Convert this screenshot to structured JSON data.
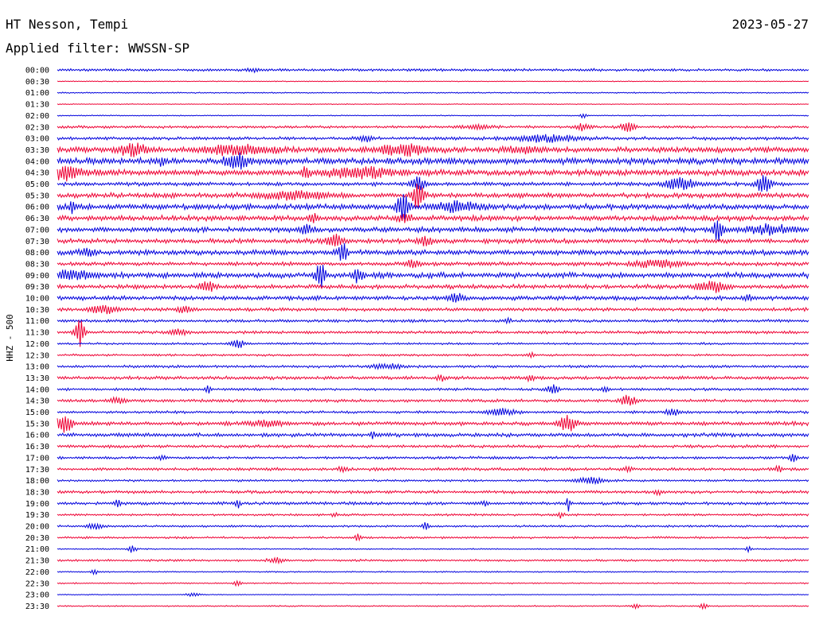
{
  "header": {
    "station": "HT Nesson, Tempi",
    "date": "2023-05-27",
    "filter": "Applied filter: WWSSN-SP"
  },
  "chart_data": {
    "type": "line",
    "title": "HT Nesson, Tempi",
    "subtitle": "Applied filter: WWSSN-SP",
    "ylabel": "HHZ - 500",
    "xlabel": "",
    "grid": false,
    "colors": {
      "blue": "#0000dd",
      "red": "#ee0033"
    },
    "color_cycle": [
      "blue",
      "red"
    ],
    "trace_noise": [
      1.2,
      0.4,
      0.6,
      0.4,
      0.5,
      1.2,
      1.5,
      2.6,
      3.0,
      2.8,
      1.8,
      2.4,
      2.6,
      2.6,
      2.4,
      2.2,
      2.4,
      1.8,
      2.6,
      2.0,
      2.0,
      1.6,
      1.4,
      1.4,
      1.0,
      1.0,
      1.2,
      1.6,
      1.2,
      1.4,
      1.2,
      1.8,
      1.8,
      1.4,
      1.2,
      1.4,
      1.0,
      1.4,
      1.4,
      1.0,
      1.0,
      1.0,
      0.6,
      1.0,
      0.6,
      0.6,
      0.4,
      0.6
    ],
    "series": [
      {
        "label": "00:00",
        "events": [
          {
            "t": 0.26,
            "a": 2,
            "w": 0.01
          }
        ]
      },
      {
        "label": "00:30",
        "events": []
      },
      {
        "label": "01:00",
        "events": []
      },
      {
        "label": "01:30",
        "events": []
      },
      {
        "label": "02:00",
        "events": [
          {
            "t": 0.7,
            "a": 3,
            "w": 0.004
          }
        ]
      },
      {
        "label": "02:30",
        "events": [
          {
            "t": 0.56,
            "a": 2,
            "w": 0.02
          },
          {
            "t": 0.7,
            "a": 4,
            "w": 0.01
          },
          {
            "t": 0.76,
            "a": 5,
            "w": 0.01
          }
        ]
      },
      {
        "label": "03:00",
        "events": [
          {
            "t": 0.41,
            "a": 3,
            "w": 0.01
          },
          {
            "t": 0.65,
            "a": 4,
            "w": 0.04
          }
        ]
      },
      {
        "label": "03:30",
        "events": [
          {
            "t": 0.1,
            "a": 6,
            "w": 0.02
          },
          {
            "t": 0.24,
            "a": 6,
            "w": 0.04
          },
          {
            "t": 0.46,
            "a": 6,
            "w": 0.03
          },
          {
            "t": 0.62,
            "a": 3,
            "w": 0.03
          }
        ]
      },
      {
        "label": "04:00",
        "events": [
          {
            "t": 0.14,
            "a": 5,
            "w": 0.004
          },
          {
            "t": 0.24,
            "a": 10,
            "w": 0.015
          },
          {
            "t": 0.78,
            "a": 3,
            "w": 0.005
          }
        ]
      },
      {
        "label": "04:30",
        "events": [
          {
            "t": 0.01,
            "a": 8,
            "w": 0.02
          },
          {
            "t": 0.33,
            "a": 9,
            "w": 0.005
          },
          {
            "t": 0.4,
            "a": 6,
            "w": 0.04
          }
        ]
      },
      {
        "label": "05:00",
        "events": [
          {
            "t": 0.48,
            "a": 8,
            "w": 0.01
          },
          {
            "t": 0.83,
            "a": 7,
            "w": 0.02
          },
          {
            "t": 0.94,
            "a": 12,
            "w": 0.01
          }
        ]
      },
      {
        "label": "05:30",
        "events": [
          {
            "t": 0.48,
            "a": 18,
            "w": 0.008
          },
          {
            "t": 0.31,
            "a": 4,
            "w": 0.05
          }
        ]
      },
      {
        "label": "06:00",
        "events": [
          {
            "t": 0.02,
            "a": 8,
            "w": 0.004
          },
          {
            "t": 0.46,
            "a": 16,
            "w": 0.008
          },
          {
            "t": 0.53,
            "a": 5,
            "w": 0.03
          }
        ]
      },
      {
        "label": "06:30",
        "events": [
          {
            "t": 0.34,
            "a": 7,
            "w": 0.005
          },
          {
            "t": 0.46,
            "a": 5,
            "w": 0.01
          }
        ]
      },
      {
        "label": "07:00",
        "events": [
          {
            "t": 0.33,
            "a": 5,
            "w": 0.01
          },
          {
            "t": 0.88,
            "a": 13,
            "w": 0.006
          },
          {
            "t": 0.95,
            "a": 5,
            "w": 0.03
          }
        ]
      },
      {
        "label": "07:30",
        "events": [
          {
            "t": 0.37,
            "a": 8,
            "w": 0.01
          },
          {
            "t": 0.49,
            "a": 5,
            "w": 0.01
          }
        ]
      },
      {
        "label": "08:00",
        "events": [
          {
            "t": 0.38,
            "a": 12,
            "w": 0.006
          },
          {
            "t": 0.04,
            "a": 4,
            "w": 0.01
          }
        ]
      },
      {
        "label": "08:30",
        "events": [
          {
            "t": 0.47,
            "a": 4,
            "w": 0.01
          },
          {
            "t": 0.8,
            "a": 4,
            "w": 0.03
          }
        ]
      },
      {
        "label": "09:00",
        "events": [
          {
            "t": 0.35,
            "a": 18,
            "w": 0.006
          },
          {
            "t": 0.4,
            "a": 9,
            "w": 0.006
          },
          {
            "t": 0.02,
            "a": 5,
            "w": 0.03
          }
        ]
      },
      {
        "label": "09:30",
        "events": [
          {
            "t": 0.2,
            "a": 9,
            "w": 0.008
          },
          {
            "t": 0.87,
            "a": 6,
            "w": 0.02
          }
        ]
      },
      {
        "label": "10:00",
        "events": [
          {
            "t": 0.53,
            "a": 6,
            "w": 0.01
          },
          {
            "t": 0.92,
            "a": 4,
            "w": 0.005
          }
        ]
      },
      {
        "label": "10:30",
        "events": [
          {
            "t": 0.06,
            "a": 5,
            "w": 0.02
          },
          {
            "t": 0.17,
            "a": 4,
            "w": 0.01
          }
        ]
      },
      {
        "label": "11:00",
        "events": [
          {
            "t": 0.6,
            "a": 4,
            "w": 0.004
          }
        ]
      },
      {
        "label": "11:30",
        "events": [
          {
            "t": 0.03,
            "a": 18,
            "w": 0.006
          },
          {
            "t": 0.16,
            "a": 5,
            "w": 0.01
          }
        ]
      },
      {
        "label": "12:00",
        "events": [
          {
            "t": 0.24,
            "a": 5,
            "w": 0.01
          }
        ]
      },
      {
        "label": "12:30",
        "events": [
          {
            "t": 0.63,
            "a": 3,
            "w": 0.005
          }
        ]
      },
      {
        "label": "13:00",
        "events": [
          {
            "t": 0.44,
            "a": 3,
            "w": 0.02
          }
        ]
      },
      {
        "label": "13:30",
        "events": [
          {
            "t": 0.51,
            "a": 4,
            "w": 0.005
          },
          {
            "t": 0.63,
            "a": 4,
            "w": 0.005
          }
        ]
      },
      {
        "label": "14:00",
        "events": [
          {
            "t": 0.2,
            "a": 5,
            "w": 0.004
          },
          {
            "t": 0.66,
            "a": 6,
            "w": 0.008
          },
          {
            "t": 0.73,
            "a": 4,
            "w": 0.005
          }
        ]
      },
      {
        "label": "14:30",
        "events": [
          {
            "t": 0.76,
            "a": 7,
            "w": 0.01
          },
          {
            "t": 0.08,
            "a": 4,
            "w": 0.01
          }
        ]
      },
      {
        "label": "15:00",
        "events": [
          {
            "t": 0.59,
            "a": 4,
            "w": 0.02
          },
          {
            "t": 0.82,
            "a": 4,
            "w": 0.01
          }
        ]
      },
      {
        "label": "15:30",
        "events": [
          {
            "t": 0.01,
            "a": 12,
            "w": 0.01
          },
          {
            "t": 0.68,
            "a": 10,
            "w": 0.01
          },
          {
            "t": 0.28,
            "a": 4,
            "w": 0.02
          }
        ]
      },
      {
        "label": "16:00",
        "events": [
          {
            "t": 0.42,
            "a": 4,
            "w": 0.004
          }
        ]
      },
      {
        "label": "16:30",
        "events": []
      },
      {
        "label": "17:00",
        "events": [
          {
            "t": 0.98,
            "a": 5,
            "w": 0.005
          },
          {
            "t": 0.14,
            "a": 3,
            "w": 0.005
          }
        ]
      },
      {
        "label": "17:30",
        "events": [
          {
            "t": 0.38,
            "a": 4,
            "w": 0.005
          },
          {
            "t": 0.76,
            "a": 5,
            "w": 0.004
          },
          {
            "t": 0.96,
            "a": 5,
            "w": 0.004
          }
        ]
      },
      {
        "label": "18:00",
        "events": [
          {
            "t": 0.71,
            "a": 4,
            "w": 0.02
          }
        ]
      },
      {
        "label": "18:30",
        "events": [
          {
            "t": 0.8,
            "a": 3,
            "w": 0.005
          }
        ]
      },
      {
        "label": "19:00",
        "events": [
          {
            "t": 0.08,
            "a": 4,
            "w": 0.004
          },
          {
            "t": 0.24,
            "a": 5,
            "w": 0.004
          },
          {
            "t": 0.68,
            "a": 14,
            "w": 0.002
          },
          {
            "t": 0.57,
            "a": 3,
            "w": 0.004
          }
        ]
      },
      {
        "label": "19:30",
        "events": [
          {
            "t": 0.37,
            "a": 3,
            "w": 0.004
          },
          {
            "t": 0.67,
            "a": 4,
            "w": 0.004
          }
        ]
      },
      {
        "label": "20:00",
        "events": [
          {
            "t": 0.49,
            "a": 5,
            "w": 0.004
          },
          {
            "t": 0.05,
            "a": 3,
            "w": 0.01
          }
        ]
      },
      {
        "label": "20:30",
        "events": [
          {
            "t": 0.4,
            "a": 4,
            "w": 0.004
          }
        ]
      },
      {
        "label": "21:00",
        "events": [
          {
            "t": 0.1,
            "a": 5,
            "w": 0.005
          },
          {
            "t": 0.92,
            "a": 3,
            "w": 0.004
          }
        ]
      },
      {
        "label": "21:30",
        "events": [
          {
            "t": 0.29,
            "a": 3,
            "w": 0.01
          }
        ]
      },
      {
        "label": "22:00",
        "events": [
          {
            "t": 0.05,
            "a": 3,
            "w": 0.004
          }
        ]
      },
      {
        "label": "22:30",
        "events": [
          {
            "t": 0.24,
            "a": 3,
            "w": 0.005
          }
        ]
      },
      {
        "label": "23:00",
        "events": [
          {
            "t": 0.18,
            "a": 2,
            "w": 0.01
          }
        ]
      },
      {
        "label": "23:30",
        "events": [
          {
            "t": 0.77,
            "a": 3,
            "w": 0.005
          },
          {
            "t": 0.86,
            "a": 4,
            "w": 0.004
          }
        ]
      }
    ]
  }
}
